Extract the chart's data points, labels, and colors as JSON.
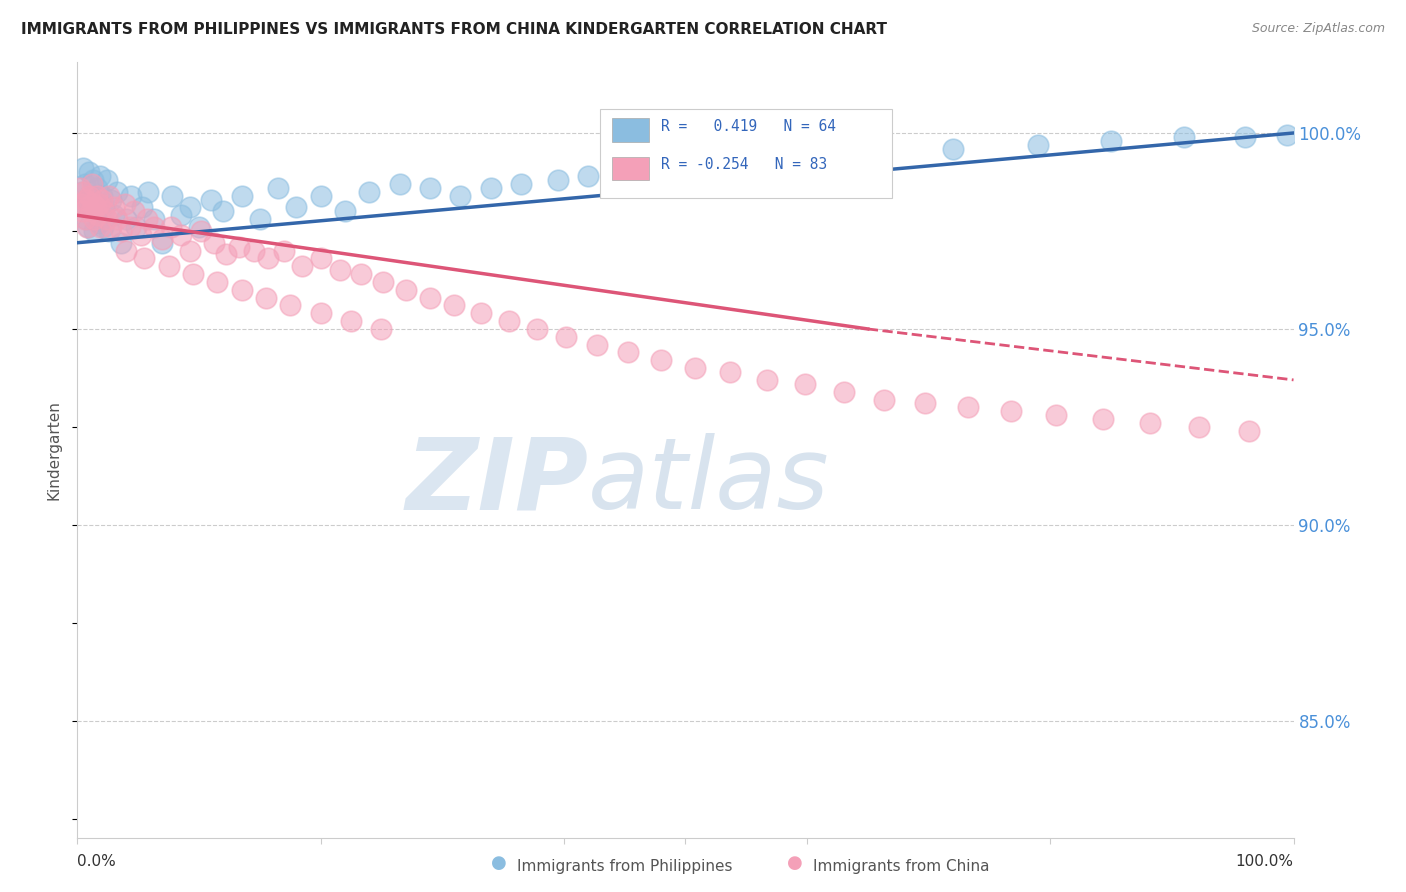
{
  "title": "IMMIGRANTS FROM PHILIPPINES VS IMMIGRANTS FROM CHINA KINDERGARTEN CORRELATION CHART",
  "source": "Source: ZipAtlas.com",
  "ylabel": "Kindergarten",
  "yticks": [
    "100.0%",
    "95.0%",
    "90.0%",
    "85.0%"
  ],
  "ytick_values": [
    1.0,
    0.95,
    0.9,
    0.85
  ],
  "legend_blue_label": "Immigrants from Philippines",
  "legend_pink_label": "Immigrants from China",
  "r_blue": 0.419,
  "n_blue": 64,
  "r_pink": -0.254,
  "n_pink": 83,
  "blue_color": "#8bbde0",
  "pink_color": "#f4a0b8",
  "blue_line_color": "#3366aa",
  "pink_line_color": "#dd5577",
  "watermark_zip": "ZIP",
  "watermark_atlas": "atlas",
  "xlim": [
    0.0,
    1.0
  ],
  "ylim": [
    0.82,
    1.018
  ],
  "blue_scatter_x": [
    0.002,
    0.004,
    0.005,
    0.006,
    0.007,
    0.008,
    0.009,
    0.01,
    0.011,
    0.012,
    0.013,
    0.014,
    0.015,
    0.016,
    0.017,
    0.018,
    0.019,
    0.02,
    0.021,
    0.022,
    0.024,
    0.026,
    0.028,
    0.03,
    0.033,
    0.036,
    0.04,
    0.044,
    0.048,
    0.053,
    0.058,
    0.063,
    0.07,
    0.078,
    0.085,
    0.093,
    0.1,
    0.11,
    0.12,
    0.135,
    0.15,
    0.165,
    0.18,
    0.2,
    0.22,
    0.24,
    0.265,
    0.29,
    0.315,
    0.34,
    0.365,
    0.395,
    0.42,
    0.46,
    0.5,
    0.55,
    0.6,
    0.65,
    0.72,
    0.79,
    0.85,
    0.91,
    0.96,
    0.995
  ],
  "blue_scatter_y": [
    0.982,
    0.985,
    0.991,
    0.987,
    0.978,
    0.983,
    0.976,
    0.99,
    0.984,
    0.981,
    0.988,
    0.975,
    0.982,
    0.986,
    0.98,
    0.977,
    0.989,
    0.984,
    0.976,
    0.981,
    0.988,
    0.975,
    0.983,
    0.979,
    0.985,
    0.972,
    0.978,
    0.984,
    0.976,
    0.981,
    0.985,
    0.978,
    0.972,
    0.984,
    0.979,
    0.981,
    0.976,
    0.983,
    0.98,
    0.984,
    0.978,
    0.986,
    0.981,
    0.984,
    0.98,
    0.985,
    0.987,
    0.986,
    0.984,
    0.986,
    0.987,
    0.988,
    0.989,
    0.99,
    0.991,
    0.993,
    0.994,
    0.995,
    0.996,
    0.997,
    0.998,
    0.999,
    0.999,
    0.9995
  ],
  "pink_scatter_x": [
    0.002,
    0.003,
    0.004,
    0.005,
    0.006,
    0.007,
    0.008,
    0.009,
    0.01,
    0.011,
    0.012,
    0.013,
    0.014,
    0.015,
    0.016,
    0.017,
    0.018,
    0.019,
    0.02,
    0.022,
    0.024,
    0.026,
    0.028,
    0.03,
    0.033,
    0.036,
    0.039,
    0.043,
    0.047,
    0.052,
    0.057,
    0.063,
    0.07,
    0.077,
    0.085,
    0.093,
    0.102,
    0.112,
    0.122,
    0.133,
    0.145,
    0.157,
    0.17,
    0.185,
    0.2,
    0.216,
    0.233,
    0.251,
    0.27,
    0.29,
    0.31,
    0.332,
    0.355,
    0.378,
    0.402,
    0.427,
    0.453,
    0.48,
    0.508,
    0.537,
    0.567,
    0.598,
    0.63,
    0.663,
    0.697,
    0.732,
    0.768,
    0.805,
    0.843,
    0.882,
    0.922,
    0.963,
    0.04,
    0.055,
    0.075,
    0.095,
    0.115,
    0.135,
    0.155,
    0.175,
    0.2,
    0.225,
    0.25
  ],
  "pink_scatter_y": [
    0.986,
    0.982,
    0.98,
    0.985,
    0.978,
    0.983,
    0.976,
    0.981,
    0.984,
    0.98,
    0.987,
    0.982,
    0.978,
    0.981,
    0.984,
    0.979,
    0.982,
    0.976,
    0.983,
    0.98,
    0.978,
    0.984,
    0.976,
    0.981,
    0.978,
    0.975,
    0.982,
    0.976,
    0.98,
    0.974,
    0.978,
    0.976,
    0.973,
    0.976,
    0.974,
    0.97,
    0.975,
    0.972,
    0.969,
    0.971,
    0.97,
    0.968,
    0.97,
    0.966,
    0.968,
    0.965,
    0.964,
    0.962,
    0.96,
    0.958,
    0.956,
    0.954,
    0.952,
    0.95,
    0.948,
    0.946,
    0.944,
    0.942,
    0.94,
    0.939,
    0.937,
    0.936,
    0.934,
    0.932,
    0.931,
    0.93,
    0.929,
    0.928,
    0.927,
    0.926,
    0.925,
    0.924,
    0.97,
    0.968,
    0.966,
    0.964,
    0.962,
    0.96,
    0.958,
    0.956,
    0.954,
    0.952,
    0.95
  ]
}
